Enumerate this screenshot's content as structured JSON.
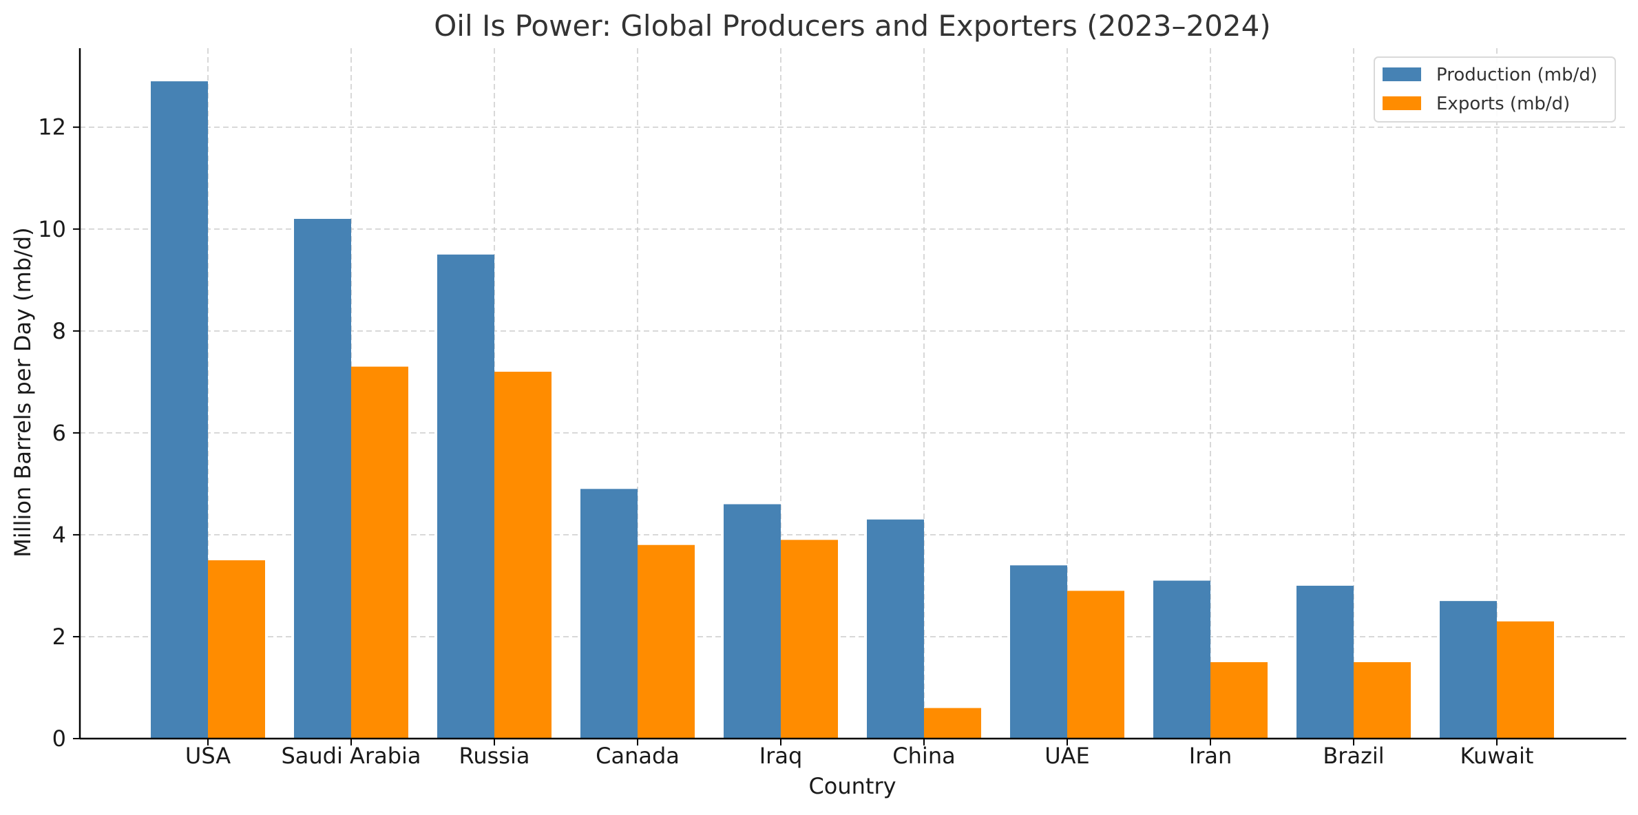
{
  "chart_data": {
    "type": "bar",
    "title": "Oil Is Power: Global Producers and Exporters (2023–2024)",
    "xlabel": "Country",
    "ylabel": "Million Barrels per Day (mb/d)",
    "categories": [
      "USA",
      "Saudi Arabia",
      "Russia",
      "Canada",
      "Iraq",
      "China",
      "UAE",
      "Iran",
      "Brazil",
      "Kuwait"
    ],
    "series": [
      {
        "name": "Production (mb/d)",
        "color": "#4682b4",
        "values": [
          12.9,
          10.2,
          9.5,
          4.9,
          4.6,
          4.3,
          3.4,
          3.1,
          3.0,
          2.7
        ]
      },
      {
        "name": "Exports (mb/d)",
        "color": "#ff8c00",
        "values": [
          3.5,
          7.3,
          7.2,
          3.8,
          3.9,
          0.6,
          2.9,
          1.5,
          1.5,
          2.3
        ]
      }
    ],
    "ylim": [
      0,
      13.55
    ],
    "yticks": [
      0,
      2,
      4,
      6,
      8,
      10,
      12
    ],
    "grid": true,
    "legend_position": "top-right"
  }
}
